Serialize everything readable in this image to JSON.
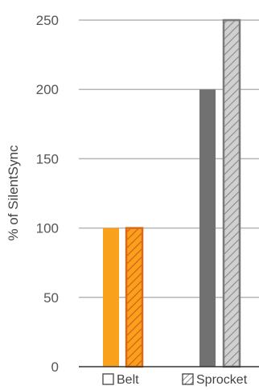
{
  "chart_data": {
    "type": "bar",
    "ylabel": "% of SilentSync",
    "xlabel": "",
    "ylim": [
      0,
      250
    ],
    "yticks": [
      0,
      50,
      100,
      150,
      200,
      250
    ],
    "grid": true,
    "legend_placement": "bottom",
    "groups": [
      {
        "color": "#f9a11b",
        "stroke": "#d86a1a",
        "values": [
          100,
          100
        ]
      },
      {
        "color": "#717171",
        "stroke": "#7a7a7a",
        "values": [
          200,
          250
        ]
      }
    ],
    "patterns": [
      "solid",
      "hatched"
    ],
    "legend": [
      {
        "label": "Belt",
        "marker": "solid"
      },
      {
        "label": "Sprocket",
        "marker": "hatched"
      }
    ]
  }
}
